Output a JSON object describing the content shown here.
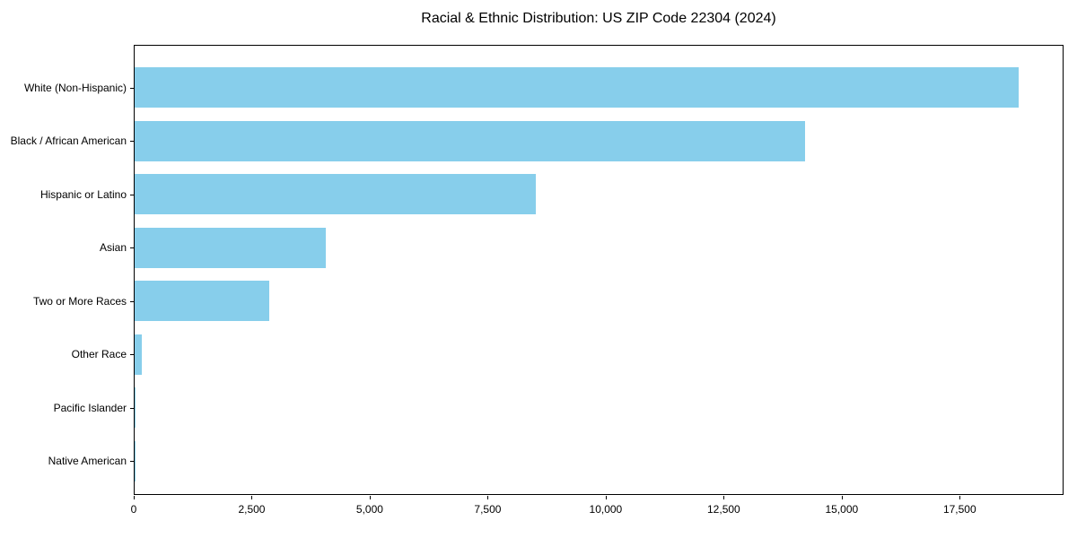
{
  "chart_data": {
    "type": "bar",
    "orientation": "horizontal",
    "title": "Racial & Ethnic Distribution: US ZIP Code 22304 (2024)",
    "categories": [
      "White (Non-Hispanic)",
      "Black / African American",
      "Hispanic or Latino",
      "Asian",
      "Two or More Races",
      "Other Race",
      "Pacific Islander",
      "Native American"
    ],
    "values": [
      18770,
      14240,
      8510,
      4050,
      2860,
      150,
      25,
      10
    ],
    "xlabel": "",
    "ylabel": "",
    "xlim": [
      0,
      19700
    ],
    "xticks": [
      0,
      2500,
      5000,
      7500,
      10000,
      12500,
      15000,
      17500
    ],
    "xtick_labels": [
      "0",
      "2,500",
      "5,000",
      "7,500",
      "10,000",
      "12,500",
      "15,000",
      "17,500"
    ],
    "bar_color": "#87CEEB",
    "axis_color": "#000000",
    "background_color": "#FFFFFF",
    "grid": false,
    "legend": false
  }
}
